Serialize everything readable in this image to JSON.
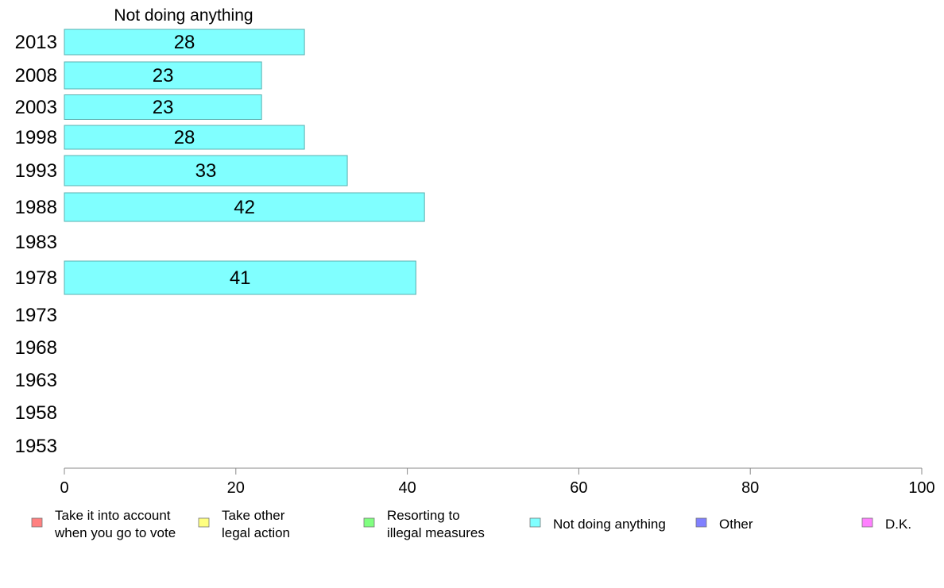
{
  "chart_data": {
    "type": "bar",
    "orientation": "horizontal",
    "title": "Not doing anything",
    "categories": [
      "2013",
      "2008",
      "2003",
      "1998",
      "1993",
      "1988",
      "1983",
      "1978",
      "1973",
      "1968",
      "1963",
      "1958",
      "1953"
    ],
    "series": [
      {
        "name": "Not doing anything",
        "color": "#80ffff",
        "values": [
          28,
          23,
          23,
          28,
          33,
          42,
          null,
          41,
          null,
          null,
          null,
          null,
          null
        ],
        "data_labels": [
          "28",
          "23",
          "23",
          "28",
          "33",
          "42",
          "",
          "41",
          "",
          "",
          "",
          "",
          ""
        ]
      }
    ],
    "xlim": [
      0,
      100
    ],
    "xticks": [
      0,
      20,
      40,
      60,
      80,
      100
    ],
    "xtick_labels": [
      "0",
      "20",
      "40",
      "60",
      "80",
      "100"
    ],
    "grid": false,
    "legend_position": "bottom",
    "legend": [
      {
        "label_lines": [
          "Take it into account",
          "when you go to vote"
        ],
        "color": "#ff8080"
      },
      {
        "label_lines": [
          "Take other",
          "legal action"
        ],
        "color": "#ffff80"
      },
      {
        "label_lines": [
          "Resorting to",
          "illegal measures"
        ],
        "color": "#80ff80"
      },
      {
        "label_lines": [
          "Not doing anything"
        ],
        "color": "#80ffff"
      },
      {
        "label_lines": [
          "Other"
        ],
        "color": "#8080ff"
      },
      {
        "label_lines": [
          "D.K."
        ],
        "color": "#ff80ff"
      }
    ],
    "colors": {
      "axis": "#888888",
      "bar_stroke": "#5ab0b0",
      "text": "#000000"
    }
  }
}
